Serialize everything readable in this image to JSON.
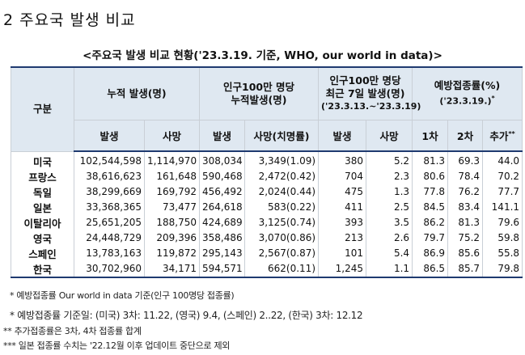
{
  "heading": "2 주요국 발생 비교",
  "caption": "<주요국 발생 비교 현황('23.3.19. 기준, WHO, our world in data)>",
  "table": {
    "groups": {
      "division": "구분",
      "cumulative": "누적 발생(명)",
      "per_million_line1": "인구100만 명당",
      "per_million_line2": "누적발생(명)",
      "recent_line1": "인구100만 명당",
      "recent_line2": "최근 7일 발생(명)",
      "recent_line3": "('23.3.13.~'23.3.19)",
      "vaccine_line1": "예방접종률(%)",
      "vaccine_line2": "('23.3.19.)",
      "vaccine_mark": "*"
    },
    "subheaders": {
      "cum_cases": "발생",
      "cum_deaths": "사망",
      "pm_cases": "발생",
      "pm_deaths": "사망(치명률)",
      "rc_cases": "발생",
      "rc_deaths": "사망",
      "dose1": "1차",
      "dose2": "2차",
      "booster": "추가",
      "booster_mark": "**"
    },
    "rows": [
      {
        "country": "미국",
        "cum_cases": "102,544,598",
        "cum_deaths": "1,114,970",
        "pm_cases": "308,034",
        "pm_deaths": "3,349(1.09)",
        "rc_cases": "380",
        "rc_deaths": "5.2",
        "dose1": "81.3",
        "dose2": "69.3",
        "booster": "44.0"
      },
      {
        "country": "프랑스",
        "cum_cases": "38,616,623",
        "cum_deaths": "161,648",
        "pm_cases": "590,468",
        "pm_deaths": "2,472(0.42)",
        "rc_cases": "704",
        "rc_deaths": "2.3",
        "dose1": "80.6",
        "dose2": "78.4",
        "booster": "70.2"
      },
      {
        "country": "독일",
        "cum_cases": "38,299,669",
        "cum_deaths": "169,792",
        "pm_cases": "456,492",
        "pm_deaths": "2,024(0.44)",
        "rc_cases": "475",
        "rc_deaths": "1.3",
        "dose1": "77.8",
        "dose2": "76.2",
        "booster": "77.7"
      },
      {
        "country": "일본",
        "cum_cases": "33,368,365",
        "cum_deaths": "73,477",
        "pm_cases": "264,618",
        "pm_deaths": "583(0.22)",
        "rc_cases": "411",
        "rc_deaths": "2.5",
        "dose1": "84.5",
        "dose2": "83.4",
        "booster": "141.1"
      },
      {
        "country": "이탈리아",
        "cum_cases": "25,651,205",
        "cum_deaths": "188,750",
        "pm_cases": "424,689",
        "pm_deaths": "3,125(0.74)",
        "rc_cases": "393",
        "rc_deaths": "3.5",
        "dose1": "86.2",
        "dose2": "81.3",
        "booster": "79.6"
      },
      {
        "country": "영국",
        "cum_cases": "24,448,729",
        "cum_deaths": "209,396",
        "pm_cases": "358,486",
        "pm_deaths": "3,070(0.86)",
        "rc_cases": "213",
        "rc_deaths": "2.6",
        "dose1": "79.7",
        "dose2": "75.2",
        "booster": "59.8"
      },
      {
        "country": "스페인",
        "cum_cases": "13,783,163",
        "cum_deaths": "119,872",
        "pm_cases": "295,143",
        "pm_deaths": "2,567(0.87)",
        "rc_cases": "101",
        "rc_deaths": "5.4",
        "dose1": "86.9",
        "dose2": "85.6",
        "booster": "55.8"
      },
      {
        "country": "한국",
        "cum_cases": "30,702,960",
        "cum_deaths": "34,171",
        "pm_cases": "594,571",
        "pm_deaths": "662(0.11)",
        "rc_cases": "1,245",
        "rc_deaths": "1.1",
        "dose1": "86.5",
        "dose2": "85.7",
        "booster": "79.8"
      }
    ]
  },
  "notes": [
    "* 예방접종률 Our world in data 기준(인구 100명당 접종률)",
    "* 예방접종률 기준일: (미국) 3차: 11.22, (영국) 9.4, (스페인) 2..22, (한국) 3차: 12.12",
    "** 추가접종률은 3차, 4차 접종률 합계",
    "*** 일본 접종률 수치는 '22.12월 이후 업데이트 중단으로 제외"
  ]
}
